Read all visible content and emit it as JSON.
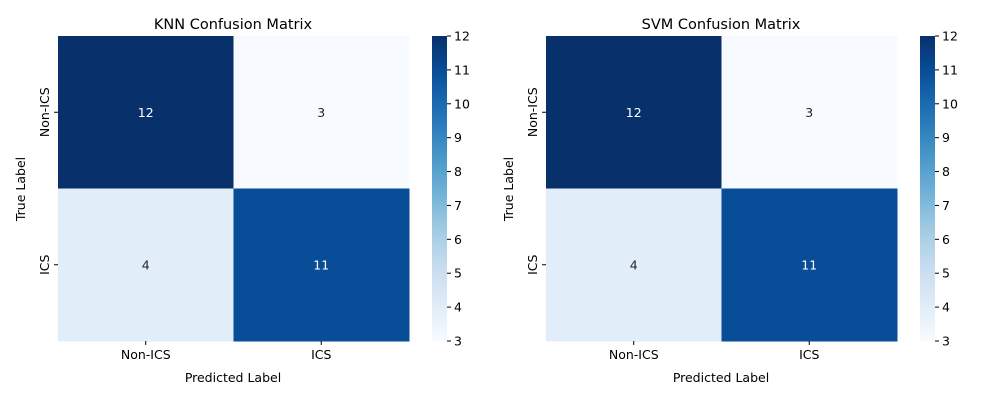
{
  "chart_data": [
    {
      "type": "heatmap",
      "title": "KNN Confusion Matrix",
      "xlabel": "Predicted Label",
      "ylabel": "True Label",
      "x_categories": [
        "Non-ICS",
        "ICS"
      ],
      "y_categories": [
        "Non-ICS",
        "ICS"
      ],
      "values": [
        [
          12,
          3
        ],
        [
          4,
          11
        ]
      ],
      "colormap": "Blues",
      "colorbar": {
        "min": 3,
        "max": 12,
        "ticks": [
          3,
          4,
          5,
          6,
          7,
          8,
          9,
          10,
          11,
          12
        ]
      }
    },
    {
      "type": "heatmap",
      "title": "SVM Confusion Matrix",
      "xlabel": "Predicted Label",
      "ylabel": "True Label",
      "x_categories": [
        "Non-ICS",
        "ICS"
      ],
      "y_categories": [
        "Non-ICS",
        "ICS"
      ],
      "values": [
        [
          12,
          3
        ],
        [
          4,
          11
        ]
      ],
      "colormap": "Blues",
      "colorbar": {
        "min": 3,
        "max": 12,
        "ticks": [
          3,
          4,
          5,
          6,
          7,
          8,
          9,
          10,
          11,
          12
        ]
      }
    }
  ]
}
